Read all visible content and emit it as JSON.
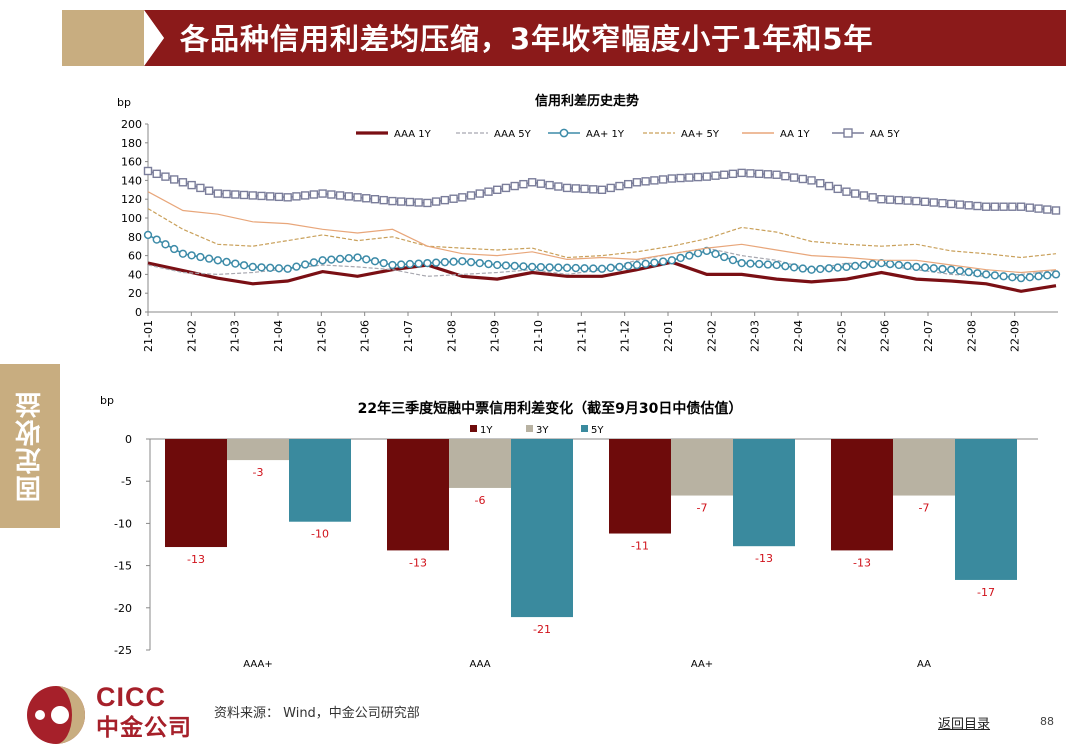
{
  "slide": {
    "title": "各品种信用利差均压缩，3年收窄幅度小于1年和5年",
    "side_tab": "固定收益",
    "source": "资料来源：  Wind，中金公司研究部",
    "back_link": "返回目录",
    "page_number": "88",
    "logo_en": "CICC",
    "logo_cn": "中金公司"
  },
  "colors": {
    "header_red": "#8b1a1a",
    "header_tan": "#c8ad80",
    "brand_red": "#a6202a"
  },
  "chart_data": [
    {
      "type": "line",
      "title": "信用利差历史走势",
      "ylabel": "bp",
      "ylim": [
        0,
        200
      ],
      "yticks": [
        0,
        20,
        40,
        60,
        80,
        100,
        120,
        140,
        160,
        180,
        200
      ],
      "xticks": [
        "21-01",
        "21-02",
        "21-03",
        "21-04",
        "21-05",
        "21-06",
        "21-07",
        "21-08",
        "21-09",
        "21-10",
        "21-11",
        "21-12",
        "22-01",
        "22-02",
        "22-03",
        "22-04",
        "22-05",
        "22-06",
        "22-07",
        "22-08",
        "22-09"
      ],
      "legend_position": "top",
      "series": [
        {
          "name": "AAA  1Y",
          "color": "#7a0f14",
          "style": "thick",
          "values": [
            52,
            44,
            36,
            30,
            33,
            43,
            38,
            45,
            50,
            38,
            35,
            42,
            38,
            38,
            45,
            53,
            40,
            40,
            35,
            32,
            35,
            42,
            35,
            33,
            30,
            22,
            28
          ]
        },
        {
          "name": "AAA  5Y",
          "color": "#a8a8b0",
          "style": "dashed",
          "values": [
            50,
            42,
            40,
            42,
            46,
            50,
            48,
            45,
            38,
            40,
            42,
            45,
            40,
            45,
            55,
            62,
            68,
            60,
            55,
            45,
            52,
            50,
            45,
            40,
            38,
            40,
            44
          ]
        },
        {
          "name": "AA+  1Y",
          "color": "#3d8ba8",
          "style": "circle",
          "values": [
            82,
            62,
            55,
            48,
            46,
            55,
            58,
            50,
            52,
            54,
            50,
            48,
            47,
            46,
            50,
            55,
            65,
            52,
            50,
            45,
            48,
            52,
            48,
            45,
            40,
            36,
            40
          ]
        },
        {
          "name": "AA+  5Y",
          "color": "#c9a05a",
          "style": "dashed",
          "values": [
            110,
            88,
            72,
            70,
            76,
            82,
            76,
            80,
            70,
            68,
            66,
            68,
            58,
            60,
            64,
            70,
            78,
            90,
            85,
            75,
            72,
            70,
            72,
            65,
            62,
            58,
            62
          ]
        },
        {
          "name": "AA  1Y",
          "color": "#e8a67a",
          "style": "thin",
          "values": [
            128,
            108,
            104,
            96,
            94,
            88,
            84,
            88,
            70,
            62,
            60,
            64,
            56,
            58,
            56,
            62,
            68,
            72,
            66,
            60,
            58,
            55,
            55,
            50,
            45,
            42,
            45
          ]
        },
        {
          "name": "AA  5Y",
          "color": "#7a7d9a",
          "style": "square",
          "values": [
            150,
            138,
            126,
            124,
            122,
            126,
            122,
            118,
            116,
            122,
            130,
            138,
            132,
            130,
            138,
            142,
            144,
            148,
            146,
            140,
            128,
            120,
            118,
            115,
            112,
            112,
            108
          ]
        }
      ]
    },
    {
      "type": "bar",
      "title": "22年三季度短融中票信用利差变化（截至9月30日中债估值）",
      "ylabel": "bp",
      "ylim": [
        -25,
        0
      ],
      "yticks": [
        0,
        -5,
        -10,
        -15,
        -20,
        -25
      ],
      "categories": [
        "AAA+",
        "AAA",
        "AA+",
        "AA"
      ],
      "legend_position": "top",
      "series": [
        {
          "name": "1Y",
          "color": "#6e0b0b",
          "values": [
            -12.8,
            -13.2,
            -11.2,
            -13.2
          ],
          "labels": [
            "-13",
            "-13",
            "-11",
            "-13"
          ]
        },
        {
          "name": "3Y",
          "color": "#b8b2a2",
          "values": [
            -2.5,
            -5.8,
            -6.7,
            -6.7
          ],
          "labels": [
            "-3",
            "-6",
            "-7",
            "-7"
          ]
        },
        {
          "name": "5Y",
          "color": "#3a8a9e",
          "values": [
            -9.8,
            -21.1,
            -12.7,
            -16.7
          ],
          "labels": [
            "-10",
            "-21",
            "-13",
            "-17"
          ]
        }
      ]
    }
  ]
}
